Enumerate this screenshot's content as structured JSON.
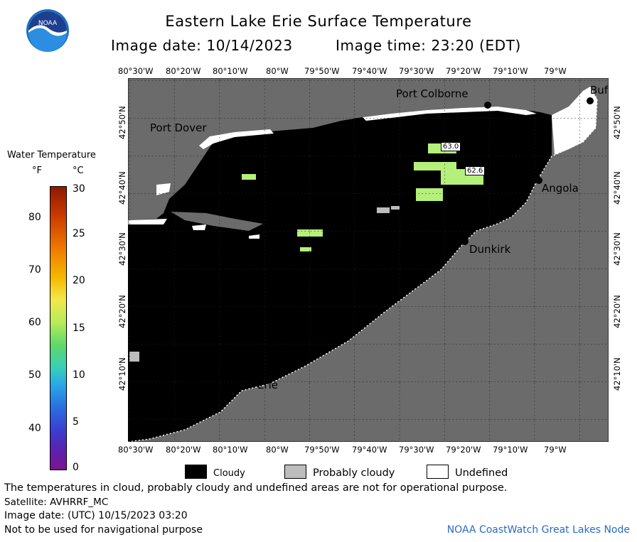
{
  "header": {
    "title": "Eastern Lake Erie Surface Temperature",
    "image_date_label": "Image date: 10/14/2023",
    "image_time_label": "Image time: 23:20 (EDT)"
  },
  "logo": {
    "text": "NOAA"
  },
  "scale": {
    "title": "Water Temperature",
    "f_unit": "°F",
    "c_unit": "°C",
    "f_ticks": [
      "80",
      "70",
      "60",
      "50",
      "40"
    ],
    "c_ticks": [
      "30",
      "25",
      "20",
      "15",
      "10",
      "5",
      "0"
    ]
  },
  "map": {
    "lon_labels": [
      "80°30'W",
      "80°20'W",
      "80°10'W",
      "80°W",
      "79°50'W",
      "79°40'W",
      "79°30'W",
      "79°20'W",
      "79°10'W",
      "79°W"
    ],
    "lat_labels": [
      "42°50'N",
      "42°40'N",
      "42°30'N",
      "42°20'N",
      "42°10'N"
    ],
    "places": {
      "port_colborne": "Port Colborne",
      "port_dover": "Port Dover",
      "buffalo": "Buf",
      "angola": "Angola",
      "dunkirk": "Dunkirk",
      "erie": "Erie"
    },
    "temps": {
      "t1": "63.0",
      "t2": "62.6"
    },
    "colors": {
      "cloud": "#000000",
      "land": "#6b6b6b",
      "probably_cloudy": "#bdbdbd",
      "undefined": "#ffffff",
      "warm_water": "#b5f07a"
    }
  },
  "legend": {
    "cloudy": "Cloudy",
    "probably_cloudy": "Probably cloudy",
    "undefined": "Undefined"
  },
  "footer": {
    "disclaimer": "The temperatures in cloud, probably cloudy and undefined areas are not for operational purpose.",
    "satellite": "Satellite: AVHRRF_MC",
    "utc_date": "Image date: (UTC) 10/15/2023  03:20",
    "nav_warning": "Not to be used for navigational purpose",
    "credit": "NOAA CoastWatch Great Lakes Node"
  }
}
